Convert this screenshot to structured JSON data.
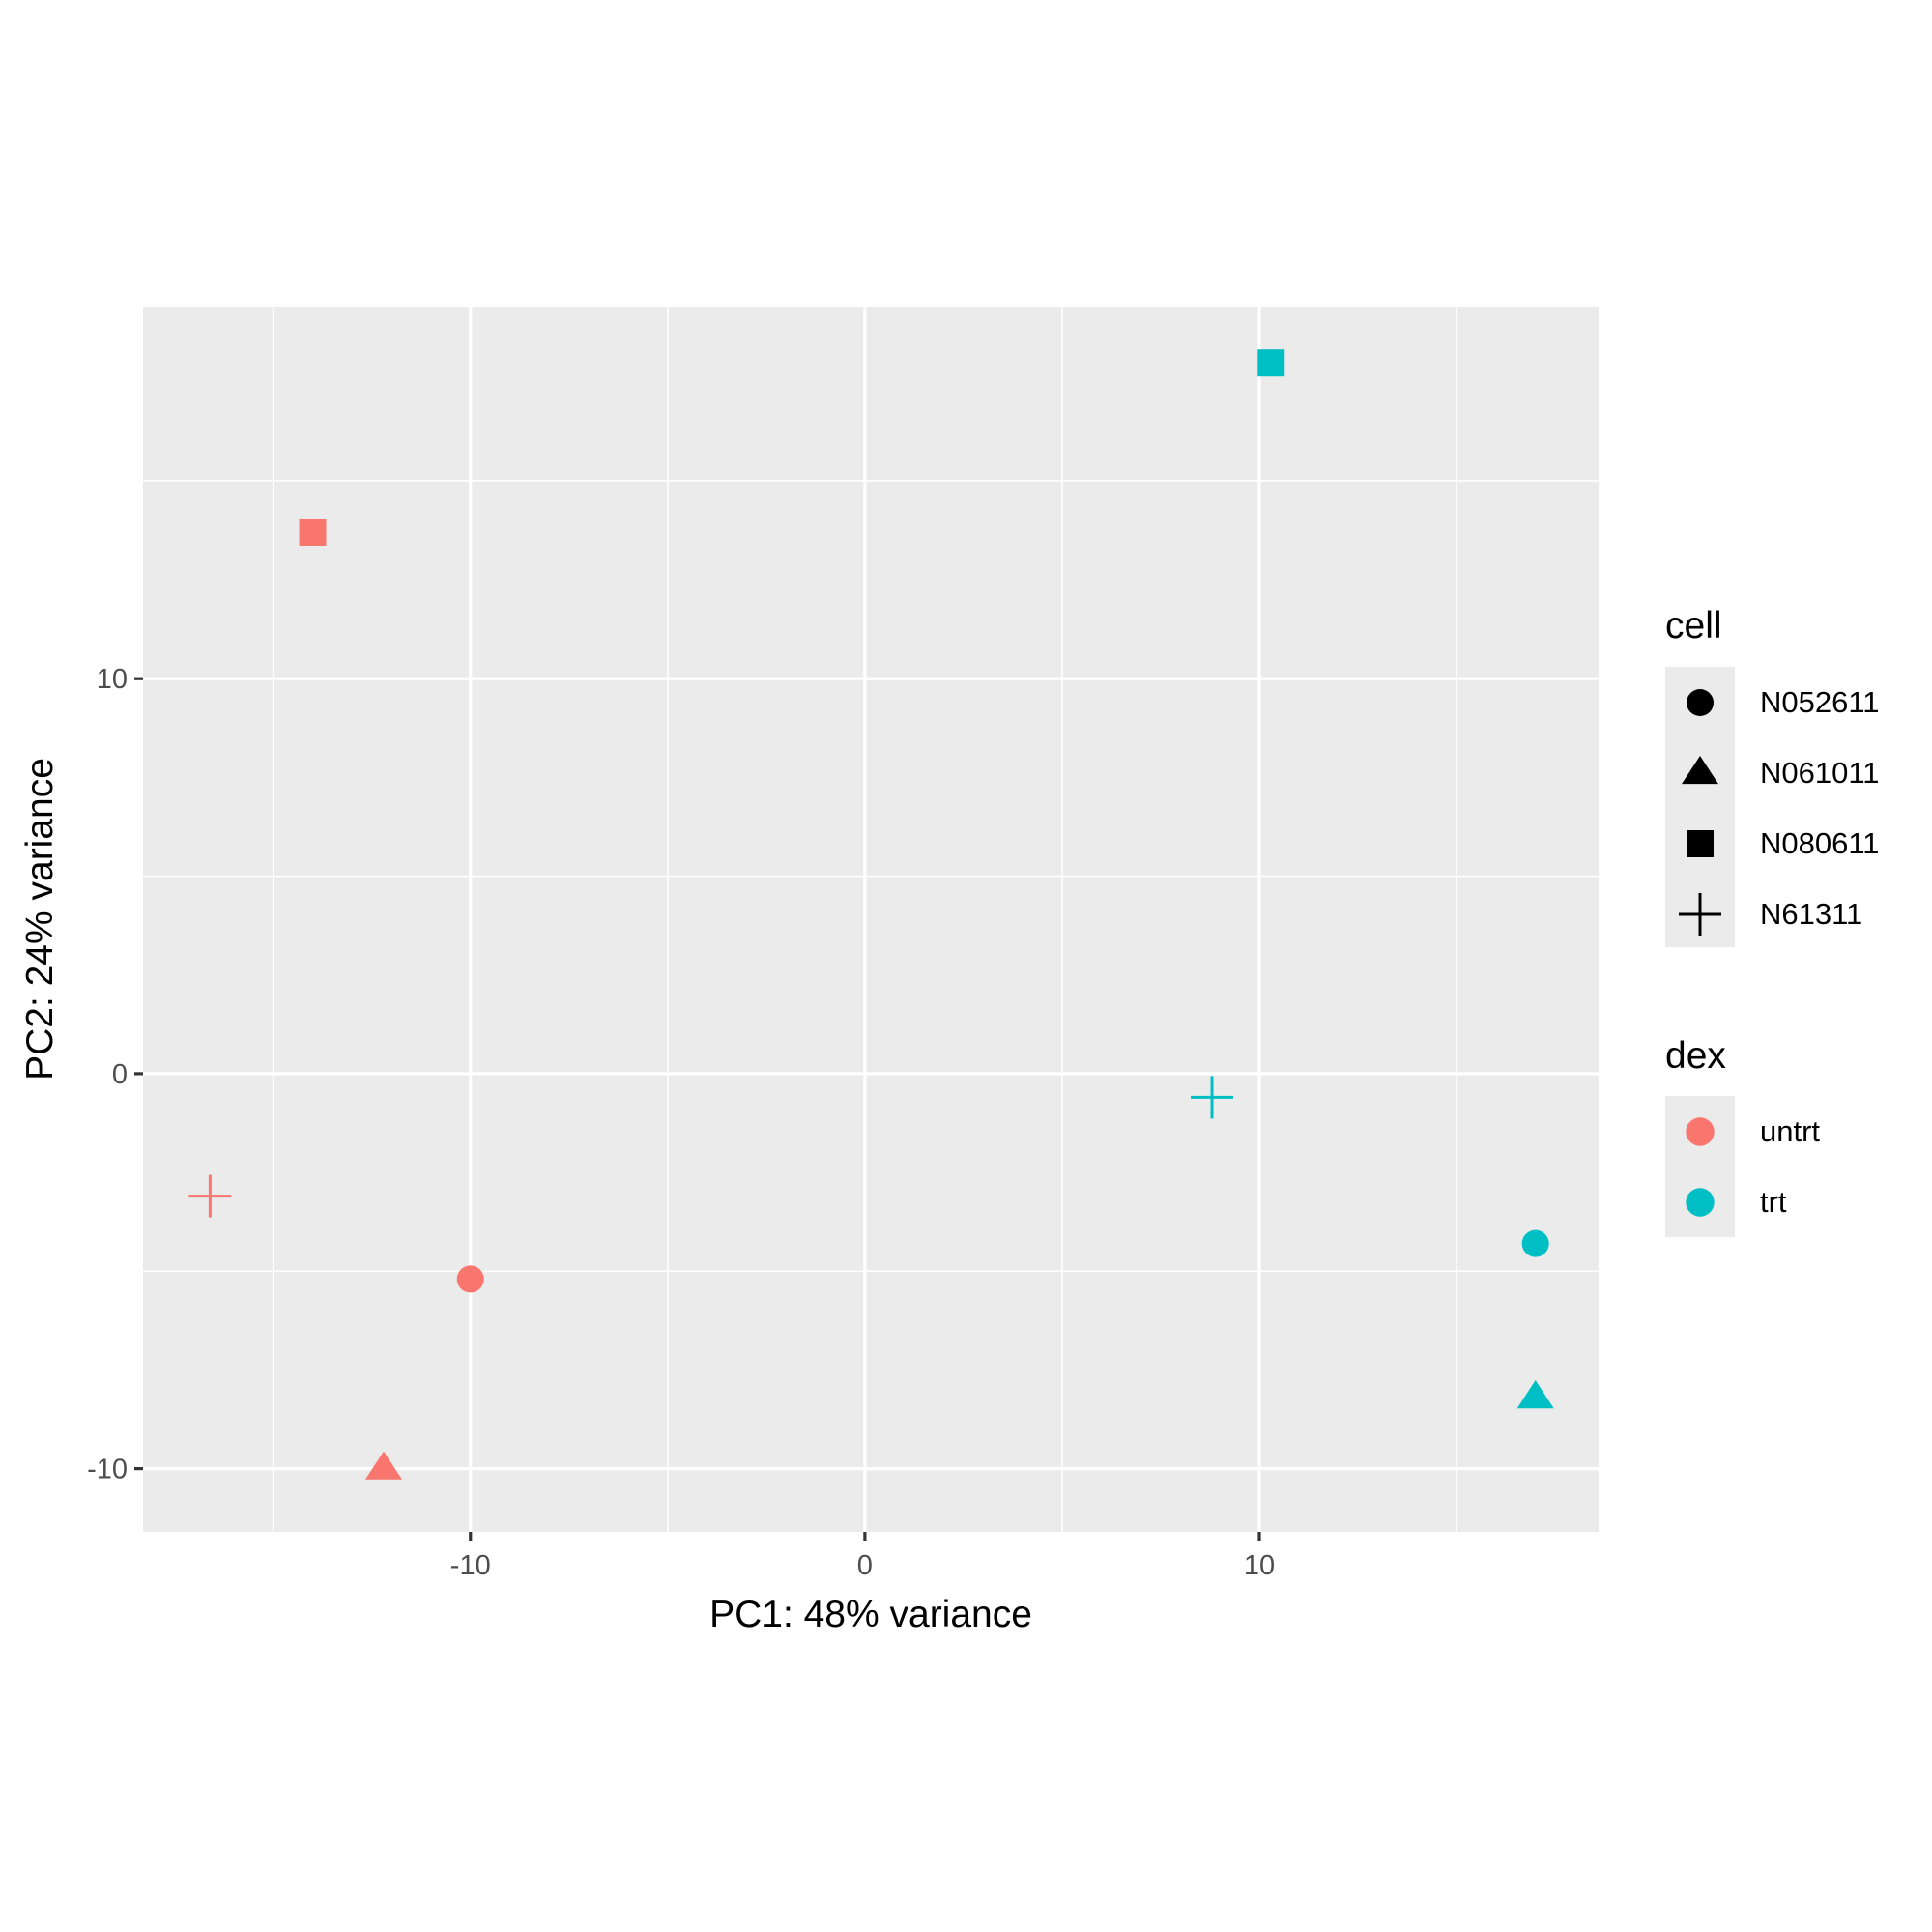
{
  "chart_data": {
    "type": "scatter",
    "xlabel": "PC1: 48% variance",
    "ylabel": "PC2: 24% variance",
    "xlim": [
      -18.3,
      18.6
    ],
    "ylim": [
      -11.6,
      19.4
    ],
    "x_ticks": [
      -10,
      0,
      10
    ],
    "y_ticks": [
      -10,
      0,
      10
    ],
    "x_tick_labels": [
      "-10",
      "0",
      "10"
    ],
    "y_tick_labels": [
      "-10",
      "0",
      "10"
    ],
    "grid": true,
    "panel_background": "#ebebeb",
    "legend_placement": "right",
    "legends": {
      "shape": {
        "title": "cell",
        "entries": [
          {
            "label": "N052611",
            "shape": "circle"
          },
          {
            "label": "N061011",
            "shape": "triangle"
          },
          {
            "label": "N080611",
            "shape": "square"
          },
          {
            "label": "N61311",
            "shape": "plus"
          }
        ]
      },
      "color": {
        "title": "dex",
        "entries": [
          {
            "label": "untrt",
            "color": "#f8766d"
          },
          {
            "label": "trt",
            "color": "#00bfc4"
          }
        ]
      }
    },
    "points": [
      {
        "x": -10.0,
        "y": -5.2,
        "cell": "N052611",
        "dex": "untrt"
      },
      {
        "x": -12.2,
        "y": -10.0,
        "cell": "N061011",
        "dex": "untrt"
      },
      {
        "x": -14.0,
        "y": 13.7,
        "cell": "N080611",
        "dex": "untrt"
      },
      {
        "x": -16.6,
        "y": -3.1,
        "cell": "N61311",
        "dex": "untrt"
      },
      {
        "x": 17.0,
        "y": -4.3,
        "cell": "N052611",
        "dex": "trt"
      },
      {
        "x": 17.0,
        "y": -8.2,
        "cell": "N061011",
        "dex": "trt"
      },
      {
        "x": 10.3,
        "y": 18.0,
        "cell": "N080611",
        "dex": "trt"
      },
      {
        "x": 8.8,
        "y": -0.6,
        "cell": "N61311",
        "dex": "trt"
      }
    ]
  }
}
